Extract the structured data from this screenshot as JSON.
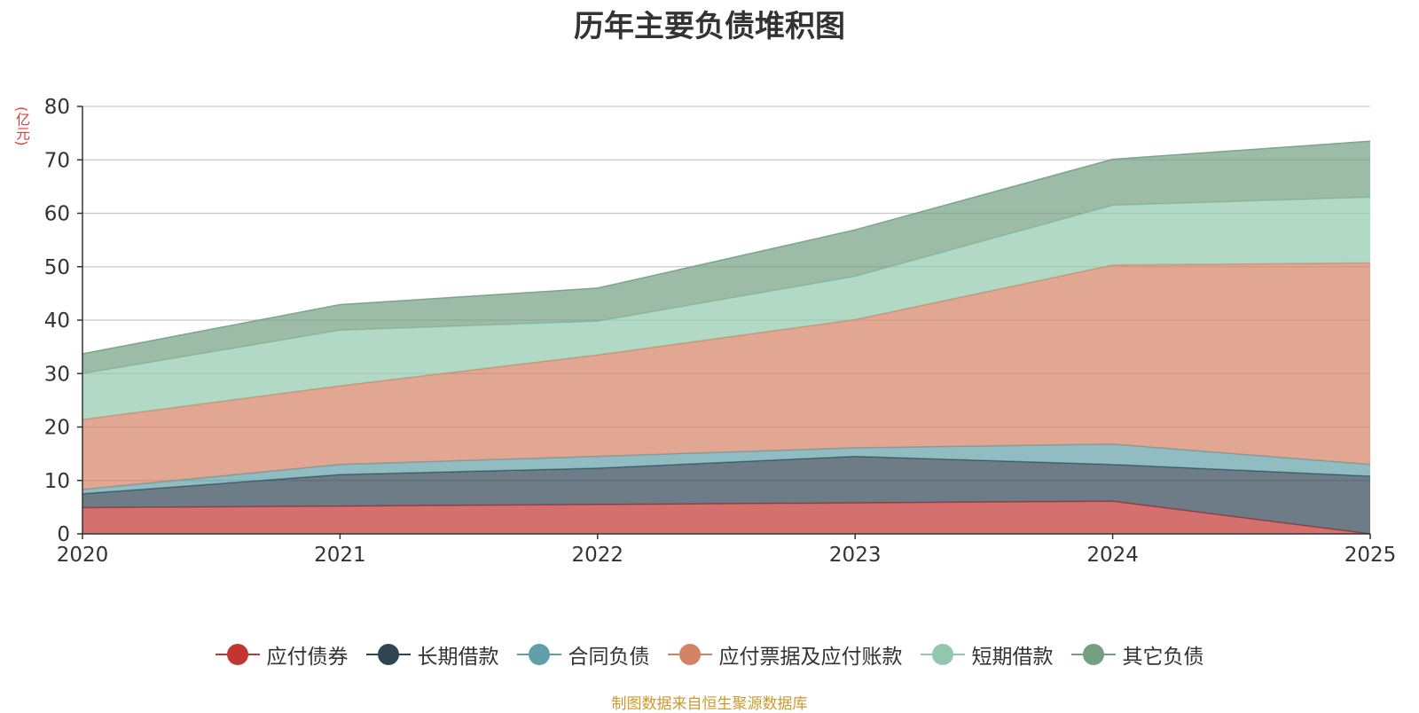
{
  "title": "历年主要负债堆积图",
  "source": "制图数据来自恒生聚源数据库",
  "chart_data": {
    "type": "area",
    "stacked": true,
    "title": "历年主要负债堆积图",
    "ylabel": "(亿元)",
    "xlabel": "",
    "categories": [
      "2020",
      "2021",
      "2022",
      "2023",
      "2024",
      "2025"
    ],
    "ylim": [
      0,
      80
    ],
    "yticks": [
      0,
      10,
      20,
      30,
      40,
      50,
      60,
      70,
      80
    ],
    "grid": true,
    "legend_position": "bottom",
    "series": [
      {
        "name": "应付债券",
        "color": "#c23531",
        "values": [
          4.9,
          5.2,
          5.5,
          5.8,
          6.1,
          0.0
        ]
      },
      {
        "name": "长期借款",
        "color": "#2f4554",
        "values": [
          2.6,
          5.9,
          6.8,
          8.7,
          6.9,
          10.8
        ]
      },
      {
        "name": "合同负债",
        "color": "#61a0a8",
        "values": [
          0.8,
          1.9,
          2.2,
          1.6,
          3.8,
          2.2
        ]
      },
      {
        "name": "应付票据及应付账款",
        "color": "#d48265",
        "values": [
          13.1,
          14.7,
          19.0,
          24.0,
          33.5,
          37.7
        ]
      },
      {
        "name": "短期借款",
        "color": "#91c7ae",
        "values": [
          8.6,
          10.4,
          6.3,
          8.1,
          11.2,
          12.3
        ]
      },
      {
        "name": "其它负债",
        "color": "#749f83",
        "values": [
          3.7,
          4.8,
          6.2,
          8.7,
          8.6,
          10.5
        ]
      }
    ]
  }
}
